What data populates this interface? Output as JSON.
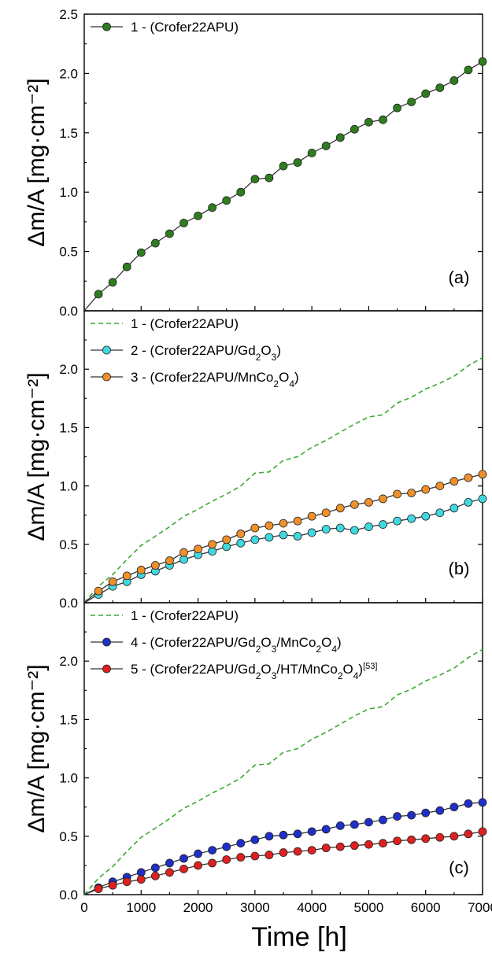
{
  "chart_data": [
    {
      "type": "line",
      "panel": "(a)",
      "xlabel": "Time [h]",
      "ylabel": "Δm/A [mg·cm⁻²]",
      "xlim": [
        0,
        7000
      ],
      "ylim": [
        0,
        2.5
      ],
      "yticks": [
        "0.0",
        "0.5",
        "1.0",
        "1.5",
        "2.0",
        "2.5"
      ],
      "xticks": [
        "0",
        "1000",
        "2000",
        "3000",
        "4000",
        "5000",
        "6000",
        "7000"
      ],
      "legend_position": "top-left",
      "series": [
        {
          "name": "1 - (Crofer22APU)",
          "style": "marker-line",
          "color": "#2e7d1e",
          "x": [
            0,
            250,
            500,
            750,
            1000,
            1250,
            1500,
            1750,
            2000,
            2250,
            2500,
            2750,
            3000,
            3250,
            3500,
            3750,
            4000,
            4250,
            4500,
            4750,
            5000,
            5250,
            5500,
            5750,
            6000,
            6250,
            6500,
            6750,
            7000
          ],
          "y": [
            0,
            0.14,
            0.24,
            0.37,
            0.49,
            0.57,
            0.65,
            0.74,
            0.8,
            0.87,
            0.93,
            1.0,
            1.11,
            1.12,
            1.22,
            1.25,
            1.33,
            1.39,
            1.46,
            1.53,
            1.59,
            1.61,
            1.71,
            1.76,
            1.83,
            1.88,
            1.94,
            2.03,
            2.1
          ]
        }
      ]
    },
    {
      "type": "line",
      "panel": "(b)",
      "xlabel": "Time [h]",
      "ylabel": "Δm/A [mg·cm⁻²]",
      "xlim": [
        0,
        7000
      ],
      "ylim": [
        0,
        2.5
      ],
      "yticks": [
        "0.0",
        "0.5",
        "1.0",
        "1.5",
        "2.0"
      ],
      "xticks": [
        "0",
        "1000",
        "2000",
        "3000",
        "4000",
        "5000",
        "6000",
        "7000"
      ],
      "legend_position": "top-left",
      "series": [
        {
          "name": "1 - (Crofer22APU)",
          "style": "dashed",
          "color": "#3aa832",
          "x": [
            0,
            250,
            500,
            750,
            1000,
            1250,
            1500,
            1750,
            2000,
            2250,
            2500,
            2750,
            3000,
            3250,
            3500,
            3750,
            4000,
            4250,
            4500,
            4750,
            5000,
            5250,
            5500,
            5750,
            6000,
            6250,
            6500,
            6750,
            7000
          ],
          "y": [
            0,
            0.14,
            0.24,
            0.37,
            0.49,
            0.57,
            0.65,
            0.74,
            0.8,
            0.87,
            0.93,
            1.0,
            1.11,
            1.12,
            1.22,
            1.25,
            1.33,
            1.39,
            1.46,
            1.53,
            1.59,
            1.61,
            1.71,
            1.76,
            1.83,
            1.88,
            1.94,
            2.03,
            2.1
          ]
        },
        {
          "name": "2 - (Crofer22APU/Gd₂O₃)",
          "style": "marker-line",
          "color": "#40d8e0",
          "x": [
            0,
            250,
            500,
            750,
            1000,
            1250,
            1500,
            1750,
            2000,
            2250,
            2500,
            2750,
            3000,
            3250,
            3500,
            3750,
            4000,
            4250,
            4500,
            4750,
            5000,
            5250,
            5500,
            5750,
            6000,
            6250,
            6500,
            6750,
            7000
          ],
          "y": [
            0,
            0.07,
            0.14,
            0.18,
            0.24,
            0.27,
            0.32,
            0.37,
            0.41,
            0.44,
            0.48,
            0.51,
            0.54,
            0.56,
            0.58,
            0.57,
            0.6,
            0.63,
            0.64,
            0.62,
            0.65,
            0.67,
            0.7,
            0.72,
            0.74,
            0.77,
            0.81,
            0.86,
            0.89
          ]
        },
        {
          "name": "3 - (Crofer22APU/MnCo₂O₄)",
          "style": "marker-line",
          "color": "#f0902a",
          "x": [
            0,
            250,
            500,
            750,
            1000,
            1250,
            1500,
            1750,
            2000,
            2250,
            2500,
            2750,
            3000,
            3250,
            3500,
            3750,
            4000,
            4250,
            4500,
            4750,
            5000,
            5250,
            5500,
            5750,
            6000,
            6250,
            6500,
            6750,
            7000
          ],
          "y": [
            0,
            0.1,
            0.18,
            0.23,
            0.28,
            0.32,
            0.36,
            0.43,
            0.46,
            0.5,
            0.54,
            0.59,
            0.64,
            0.66,
            0.68,
            0.7,
            0.74,
            0.77,
            0.81,
            0.84,
            0.86,
            0.89,
            0.93,
            0.94,
            0.97,
            1.0,
            1.04,
            1.07,
            1.1
          ]
        }
      ]
    },
    {
      "type": "line",
      "panel": "(c)",
      "xlabel": "Time [h]",
      "ylabel": "Δm/A [mg·cm⁻²]",
      "xlim": [
        0,
        7000
      ],
      "ylim": [
        0,
        2.5
      ],
      "yticks": [
        "0.0",
        "0.5",
        "1.0",
        "1.5",
        "2.0"
      ],
      "xticks": [
        "0",
        "1000",
        "2000",
        "3000",
        "4000",
        "5000",
        "6000",
        "7000"
      ],
      "legend_position": "top-left",
      "series": [
        {
          "name": "1 - (Crofer22APU)",
          "style": "dashed",
          "color": "#3aa832",
          "x": [
            0,
            250,
            500,
            750,
            1000,
            1250,
            1500,
            1750,
            2000,
            2250,
            2500,
            2750,
            3000,
            3250,
            3500,
            3750,
            4000,
            4250,
            4500,
            4750,
            5000,
            5250,
            5500,
            5750,
            6000,
            6250,
            6500,
            6750,
            7000
          ],
          "y": [
            0,
            0.14,
            0.24,
            0.37,
            0.49,
            0.57,
            0.65,
            0.74,
            0.8,
            0.87,
            0.93,
            1.0,
            1.11,
            1.12,
            1.22,
            1.25,
            1.33,
            1.39,
            1.46,
            1.53,
            1.59,
            1.61,
            1.71,
            1.76,
            1.83,
            1.88,
            1.94,
            2.03,
            2.1
          ]
        },
        {
          "name": "4 - (Crofer22APU/Gd₂O₃/MnCo₂O₄)",
          "style": "marker-line",
          "color": "#1f2fc8",
          "x": [
            0,
            250,
            500,
            750,
            1000,
            1250,
            1500,
            1750,
            2000,
            2250,
            2500,
            2750,
            3000,
            3250,
            3500,
            3750,
            4000,
            4250,
            4500,
            4750,
            5000,
            5250,
            5500,
            5750,
            6000,
            6250,
            6500,
            6750,
            7000
          ],
          "y": [
            0,
            0.06,
            0.11,
            0.15,
            0.19,
            0.23,
            0.27,
            0.31,
            0.35,
            0.38,
            0.41,
            0.44,
            0.47,
            0.5,
            0.51,
            0.52,
            0.54,
            0.56,
            0.59,
            0.6,
            0.62,
            0.64,
            0.67,
            0.68,
            0.7,
            0.72,
            0.75,
            0.78,
            0.79
          ]
        },
        {
          "name": "5 - (Crofer22APU/Gd₂O₃/HT/MnCo₂O₄)",
          "name_superscript": "[53]",
          "style": "marker-line",
          "color": "#e02020",
          "x": [
            0,
            250,
            500,
            750,
            1000,
            1250,
            1500,
            1750,
            2000,
            2250,
            2500,
            2750,
            3000,
            3250,
            3500,
            3750,
            4000,
            4250,
            4500,
            4750,
            5000,
            5250,
            5500,
            5750,
            6000,
            6250,
            6500,
            6750,
            7000
          ],
          "y": [
            0,
            0.05,
            0.08,
            0.11,
            0.13,
            0.16,
            0.19,
            0.22,
            0.25,
            0.27,
            0.3,
            0.32,
            0.33,
            0.34,
            0.36,
            0.37,
            0.38,
            0.4,
            0.41,
            0.42,
            0.43,
            0.44,
            0.46,
            0.47,
            0.48,
            0.49,
            0.5,
            0.52,
            0.54
          ]
        }
      ]
    }
  ]
}
